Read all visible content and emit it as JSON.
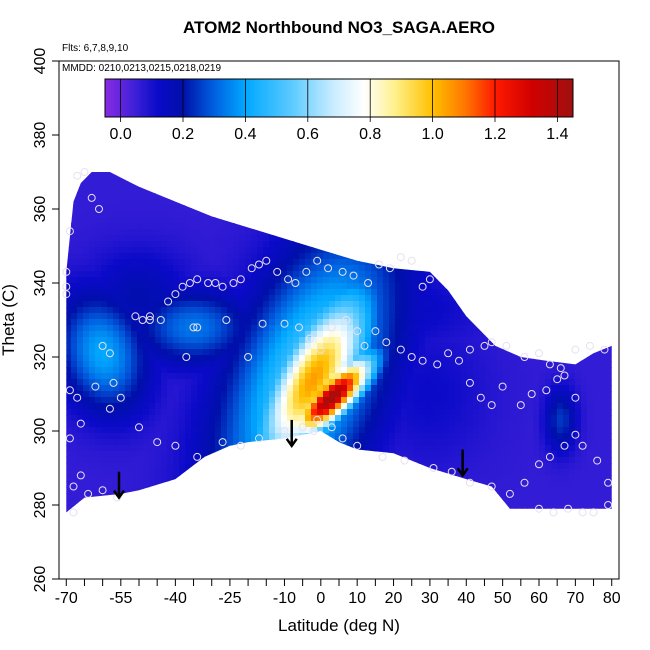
{
  "chart_data": {
    "type": "heatmap",
    "title": "ATOM2 Northbound NO3_SAGA.AERO",
    "notes": [
      "Flts: 6,7,8,9,10",
      "MMDD: 0210,0213,0215,0218,0219"
    ],
    "xlabel": "Latitude (deg N)",
    "ylabel": "Theta (C)",
    "xlim": [
      -72,
      82
    ],
    "ylim": [
      260,
      400
    ],
    "x_ticks": [
      "-70",
      "-55",
      "-40",
      "-25",
      "-10",
      "0",
      "10",
      "20",
      "30",
      "40",
      "50",
      "60",
      "70",
      "80"
    ],
    "x_tick_values": [
      -70,
      -55,
      -40,
      -25,
      -10,
      0,
      10,
      20,
      30,
      40,
      50,
      60,
      70,
      80
    ],
    "x_minor_ticks": [
      -65,
      -60,
      -50,
      -45,
      -35,
      -30,
      -20,
      -15,
      -5,
      5,
      15,
      25,
      35,
      45,
      55,
      65,
      75
    ],
    "y_ticks": [
      "260",
      "280",
      "300",
      "320",
      "340",
      "360",
      "380",
      "400"
    ],
    "y_tick_values": [
      260,
      280,
      300,
      320,
      340,
      360,
      380,
      400
    ],
    "colorbar": {
      "ticks": [
        "0.0",
        "0.2",
        "0.4",
        "0.6",
        "0.8",
        "1.0",
        "1.2",
        "1.4"
      ],
      "tick_values": [
        0,
        0.2,
        0.4,
        0.6,
        0.8,
        1.0,
        1.2,
        1.4
      ],
      "range": [
        -0.05,
        1.45
      ],
      "stops": [
        {
          "v": -0.05,
          "c": "#8a2be2"
        },
        {
          "v": 0.05,
          "c": "#3a1fd8"
        },
        {
          "v": 0.12,
          "c": "#0a0ac8"
        },
        {
          "v": 0.2,
          "c": "#0010a8"
        },
        {
          "v": 0.3,
          "c": "#0060e0"
        },
        {
          "v": 0.4,
          "c": "#00a8ff"
        },
        {
          "v": 0.55,
          "c": "#5ccaff"
        },
        {
          "v": 0.68,
          "c": "#c8ecff"
        },
        {
          "v": 0.78,
          "c": "#ffffff"
        },
        {
          "v": 0.88,
          "c": "#fff08a"
        },
        {
          "v": 1.0,
          "c": "#ffc000"
        },
        {
          "v": 1.1,
          "c": "#ff7a00"
        },
        {
          "v": 1.2,
          "c": "#ff1a00"
        },
        {
          "v": 1.32,
          "c": "#d00000"
        },
        {
          "v": 1.45,
          "c": "#a01010"
        }
      ]
    },
    "data_region_top": [
      [
        -70,
        343
      ],
      [
        -68,
        362
      ],
      [
        -66,
        367
      ],
      [
        -63,
        370
      ],
      [
        -58,
        370
      ],
      [
        -56,
        369
      ],
      [
        -50,
        366
      ],
      [
        -40,
        362
      ],
      [
        -30,
        358
      ],
      [
        -20,
        355
      ],
      [
        -10,
        352
      ],
      [
        0,
        349
      ],
      [
        10,
        346
      ],
      [
        20,
        344
      ],
      [
        30,
        343
      ],
      [
        35,
        338
      ],
      [
        40,
        331
      ],
      [
        48,
        323
      ],
      [
        55,
        320
      ],
      [
        62,
        319
      ],
      [
        70,
        318
      ],
      [
        75,
        321
      ],
      [
        80,
        323
      ]
    ],
    "data_region_bottom": [
      [
        -70,
        278
      ],
      [
        -65,
        282
      ],
      [
        -55,
        283
      ],
      [
        -50,
        284
      ],
      [
        -40,
        287
      ],
      [
        -32,
        293
      ],
      [
        -25,
        296
      ],
      [
        -20,
        297
      ],
      [
        -10,
        298
      ],
      [
        -5,
        299
      ],
      [
        0,
        300
      ],
      [
        5,
        297
      ],
      [
        10,
        295
      ],
      [
        20,
        294
      ],
      [
        30,
        290
      ],
      [
        40,
        287
      ],
      [
        47,
        285
      ],
      [
        52,
        279
      ],
      [
        80,
        279
      ]
    ],
    "features": [
      {
        "x": 3,
        "y": 309,
        "v": 1.45,
        "sx": 3.5,
        "sy": 10,
        "rot": -0.8
      },
      {
        "x": -2,
        "y": 314,
        "v": 1.05,
        "sx": 7,
        "sy": 18,
        "rot": -0.5
      },
      {
        "x": -4,
        "y": 314,
        "v": 0.55,
        "sx": 13,
        "sy": 28,
        "rot": -0.4
      },
      {
        "x": -60,
        "y": 321,
        "v": 0.4,
        "sx": 8,
        "sy": 11,
        "rot": 0.3
      },
      {
        "x": -35,
        "y": 328,
        "v": 0.33,
        "sx": 11,
        "sy": 7,
        "rot": 0
      },
      {
        "x": -50,
        "y": 336,
        "v": 0.18,
        "sx": 10,
        "sy": 9,
        "rot": 0
      },
      {
        "x": 15,
        "y": 333,
        "v": 0.15,
        "sx": 20,
        "sy": 8,
        "rot": 0
      },
      {
        "x": 66,
        "y": 303,
        "v": 0.25,
        "sx": 3,
        "sy": 6,
        "rot": 0
      },
      {
        "x": 30,
        "y": 310,
        "v": 0.12,
        "sx": 12,
        "sy": 14,
        "rot": 0
      }
    ],
    "background_value": 0.06,
    "samples": [
      [
        -67,
        369
      ],
      [
        -65,
        370
      ],
      [
        -63,
        363
      ],
      [
        -61,
        360
      ],
      [
        -69,
        354
      ],
      [
        -70,
        343
      ],
      [
        -70,
        339
      ],
      [
        -70,
        337
      ],
      [
        -69,
        311
      ],
      [
        -67,
        309
      ],
      [
        -66,
        302
      ],
      [
        -69,
        298
      ],
      [
        -68,
        278
      ],
      [
        -64,
        283
      ],
      [
        -60,
        284
      ],
      [
        -56,
        282
      ],
      [
        -58,
        306
      ],
      [
        -57,
        313
      ],
      [
        -60,
        323
      ],
      [
        -58,
        321
      ],
      [
        -51,
        331
      ],
      [
        -49,
        330
      ],
      [
        -47,
        331
      ],
      [
        -44,
        330
      ],
      [
        -42,
        335
      ],
      [
        -40,
        337
      ],
      [
        -38,
        339
      ],
      [
        -36,
        340
      ],
      [
        -34,
        341
      ],
      [
        -31,
        340
      ],
      [
        -29,
        340
      ],
      [
        -27,
        339
      ],
      [
        -24,
        340
      ],
      [
        -22,
        341
      ],
      [
        -19,
        344
      ],
      [
        -17,
        345
      ],
      [
        -15,
        346
      ],
      [
        -12,
        343
      ],
      [
        -9,
        341
      ],
      [
        -7,
        340
      ],
      [
        -4,
        343
      ],
      [
        -1,
        346
      ],
      [
        2,
        344
      ],
      [
        6,
        343
      ],
      [
        9,
        342
      ],
      [
        13,
        340
      ],
      [
        16,
        345
      ],
      [
        19,
        344
      ],
      [
        22,
        347
      ],
      [
        25,
        346
      ],
      [
        28,
        339
      ],
      [
        30,
        341
      ],
      [
        -47,
        330
      ],
      [
        -35,
        328
      ],
      [
        -34,
        328
      ],
      [
        -37,
        320
      ],
      [
        -26,
        330
      ],
      [
        -20,
        320
      ],
      [
        -16,
        329
      ],
      [
        -10,
        329
      ],
      [
        -6,
        328
      ],
      [
        -3,
        325
      ],
      [
        0,
        322
      ],
      [
        3,
        328
      ],
      [
        7,
        330
      ],
      [
        10,
        327
      ],
      [
        12,
        323
      ],
      [
        15,
        327
      ],
      [
        18,
        324
      ],
      [
        22,
        322
      ],
      [
        25,
        320
      ],
      [
        28,
        319
      ],
      [
        32,
        318
      ],
      [
        35,
        321
      ],
      [
        38,
        319
      ],
      [
        41,
        322
      ],
      [
        45,
        323
      ],
      [
        47,
        324
      ],
      [
        51,
        323
      ],
      [
        56,
        320
      ],
      [
        60,
        321
      ],
      [
        63,
        318
      ],
      [
        67,
        315
      ],
      [
        70,
        322
      ],
      [
        74,
        323
      ],
      [
        78,
        322
      ],
      [
        -50,
        301
      ],
      [
        -45,
        297
      ],
      [
        -40,
        296
      ],
      [
        -34,
        293
      ],
      [
        -27,
        297
      ],
      [
        -22,
        296
      ],
      [
        -17,
        298
      ],
      [
        -10,
        300
      ],
      [
        -2,
        300
      ],
      [
        3,
        301
      ],
      [
        6,
        298
      ],
      [
        10,
        296
      ],
      [
        17,
        293
      ],
      [
        23,
        292
      ],
      [
        31,
        290
      ],
      [
        36,
        289
      ],
      [
        41,
        286
      ],
      [
        47,
        285
      ],
      [
        52,
        283
      ],
      [
        56,
        286
      ],
      [
        60,
        291
      ],
      [
        63,
        293
      ],
      [
        67,
        296
      ],
      [
        70,
        299
      ],
      [
        72,
        296
      ],
      [
        76,
        292
      ],
      [
        79,
        286
      ],
      [
        60,
        279
      ],
      [
        64,
        278
      ],
      [
        68,
        279
      ],
      [
        72,
        278
      ],
      [
        75,
        278
      ],
      [
        79,
        280
      ],
      [
        55,
        307
      ],
      [
        58,
        310
      ],
      [
        62,
        311
      ],
      [
        47,
        307
      ],
      [
        50,
        312
      ],
      [
        44,
        309
      ],
      [
        41,
        313
      ],
      [
        -55,
        309
      ],
      [
        -62,
        312
      ],
      [
        -66,
        288
      ],
      [
        -68,
        285
      ],
      [
        -5,
        301
      ],
      [
        -1,
        303
      ],
      [
        70,
        309
      ],
      [
        65,
        314
      ],
      [
        66,
        317
      ]
    ],
    "arrows": [
      {
        "x": -55.5,
        "y_top": 289,
        "y_tip": 282
      },
      {
        "x": -8,
        "y_top": 303,
        "y_tip": 296
      },
      {
        "x": 39,
        "y_top": 295,
        "y_tip": 288
      }
    ]
  }
}
